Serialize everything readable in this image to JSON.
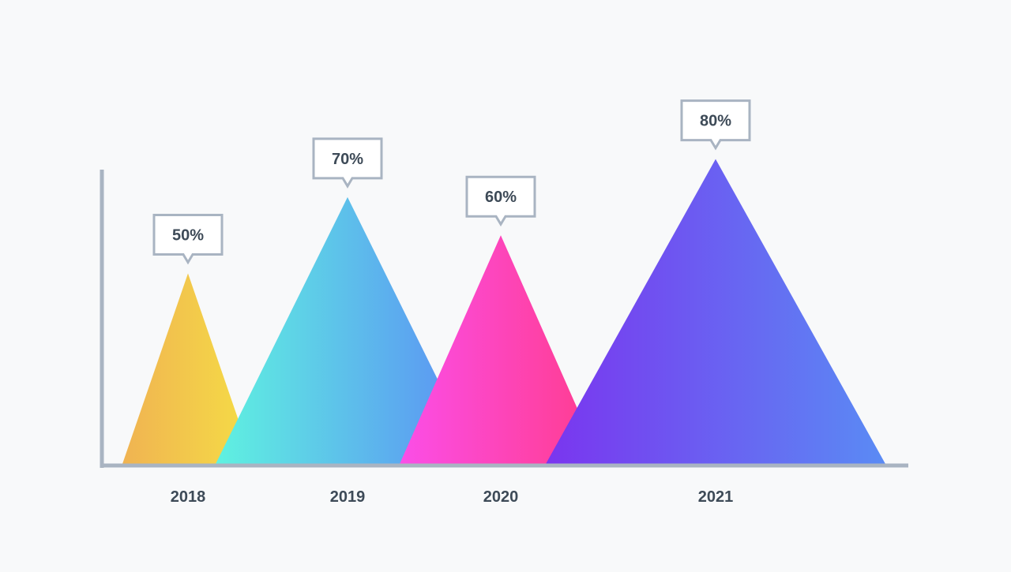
{
  "chart_data": {
    "type": "bar",
    "mark": "triangle",
    "categories": [
      "2018",
      "2019",
      "2020",
      "2021"
    ],
    "values": [
      50,
      70,
      60,
      80
    ],
    "value_labels": [
      "50%",
      "70%",
      "60%",
      "80%"
    ],
    "unit": "%",
    "title": "",
    "xlabel": "",
    "ylabel": "",
    "grid": false,
    "legend": "none",
    "gradients": [
      [
        "#f0b352",
        "#f5dd45"
      ],
      [
        "#5ff2e0",
        "#5b8cf5"
      ],
      [
        "#fb4ee8",
        "#ff3c8c"
      ],
      [
        "#7a35ef",
        "#5a8bf4"
      ]
    ]
  },
  "colors": {
    "axis": "#a9b4c2",
    "callout_border": "#a9b4c2",
    "text": "#3d4a57",
    "background": "#f8f9fa"
  }
}
